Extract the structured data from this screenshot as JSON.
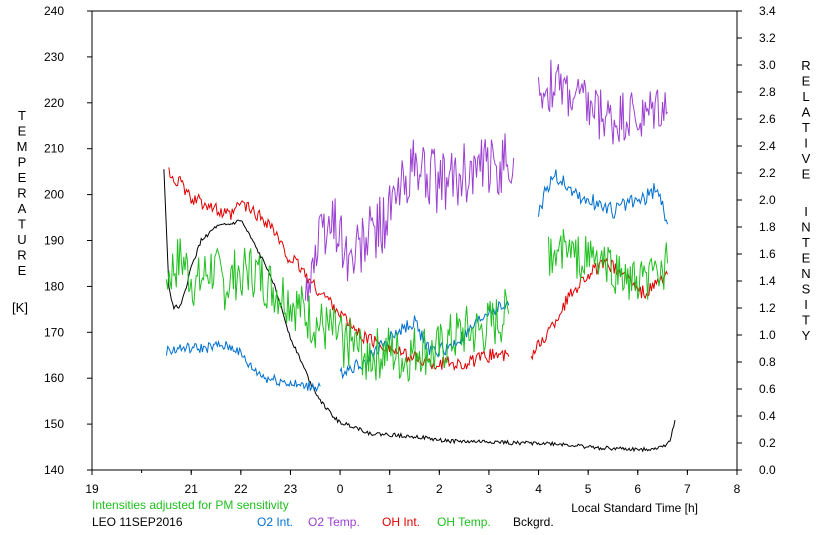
{
  "chart_data": {
    "type": "line",
    "xlabel": "Local Standard Time [h]",
    "x_ticks": [
      "19",
      "21",
      "22",
      "23",
      "0",
      "1",
      "2",
      "3",
      "4",
      "5",
      "6",
      "7",
      "8"
    ],
    "x_range": [
      19,
      32
    ],
    "left_axis": {
      "label_letters": [
        "T",
        "E",
        "M",
        "P",
        "E",
        "R",
        "A",
        "T",
        "U",
        "R",
        "E"
      ],
      "unit": "[K]",
      "range": [
        140,
        240
      ],
      "ticks": [
        140,
        150,
        160,
        170,
        180,
        190,
        200,
        210,
        220,
        230,
        240
      ]
    },
    "right_axis": {
      "label_word1": [
        "R",
        "E",
        "L",
        "A",
        "T",
        "I",
        "V",
        "E"
      ],
      "label_word2": [
        "I",
        "N",
        "T",
        "E",
        "N",
        "S",
        "I",
        "T",
        "Y"
      ],
      "range": [
        0.0,
        3.4
      ],
      "ticks": [
        "0.0",
        "0.2",
        "0.4",
        "0.6",
        "0.8",
        "1.0",
        "1.2",
        "1.4",
        "1.6",
        "1.8",
        "2.0",
        "2.2",
        "2.4",
        "2.6",
        "2.8",
        "3.0",
        "3.2",
        "3.4"
      ]
    },
    "note": "Intensities adjusted for PM sensitivity",
    "station": "LEO 11SEP2016",
    "legend": [
      {
        "key": "o2int",
        "label": "O2 Int.",
        "color": "#0070d0"
      },
      {
        "key": "o2temp",
        "label": "O2 Temp.",
        "color": "#9b40d0"
      },
      {
        "key": "ohint",
        "label": "OH Int.",
        "color": "#e00000"
      },
      {
        "key": "ohtemp",
        "label": "OH Temp.",
        "color": "#20c020"
      },
      {
        "key": "bck",
        "label": "Bckgrd.",
        "color": "#000000"
      }
    ],
    "series": [
      {
        "key": "bck",
        "axis": "right",
        "color": "#000000",
        "x": [
          20.45,
          20.55,
          20.65,
          20.8,
          21.0,
          21.2,
          21.5,
          21.8,
          22.0,
          22.2,
          22.4,
          22.6,
          22.8,
          23.0,
          23.2,
          23.4,
          23.6,
          23.8,
          24.0,
          24.3,
          24.6,
          25.0,
          25.5,
          26.0,
          26.5,
          27.0,
          27.5,
          28.0,
          28.5,
          29.0,
          29.5,
          30.0,
          30.3,
          30.5,
          30.65,
          30.75
        ],
        "y": [
          2.22,
          1.35,
          1.2,
          1.22,
          1.5,
          1.7,
          1.8,
          1.82,
          1.85,
          1.72,
          1.58,
          1.45,
          1.22,
          0.98,
          0.82,
          0.65,
          0.52,
          0.42,
          0.35,
          0.32,
          0.27,
          0.26,
          0.25,
          0.22,
          0.21,
          0.21,
          0.2,
          0.2,
          0.19,
          0.17,
          0.16,
          0.15,
          0.16,
          0.17,
          0.22,
          0.37
        ],
        "noise": 0.015
      },
      {
        "key": "ohint",
        "axis": "right",
        "color": "#e00000",
        "x": [
          20.55,
          20.8,
          21.0,
          21.3,
          21.6,
          21.8,
          22.0,
          22.3,
          22.6,
          22.9,
          23.2,
          23.5,
          23.8,
          24.1,
          24.4,
          24.7,
          25.0,
          25.3,
          25.6,
          25.9,
          26.2,
          26.5,
          26.8,
          27.1,
          27.4
        ],
        "y": [
          2.2,
          2.12,
          2.0,
          1.98,
          1.9,
          1.88,
          1.98,
          1.9,
          1.82,
          1.6,
          1.5,
          1.35,
          1.25,
          1.12,
          1.0,
          0.95,
          0.9,
          0.85,
          0.82,
          0.78,
          0.8,
          0.78,
          0.82,
          0.86,
          0.84
        ],
        "noise": 0.05,
        "seed": 11
      },
      {
        "key": "ohint",
        "axis": "right",
        "color": "#e00000",
        "x": [
          27.85,
          28.0,
          28.3,
          28.6,
          28.9,
          29.2,
          29.4,
          29.6,
          29.8,
          30.0,
          30.2,
          30.5,
          30.6
        ],
        "y": [
          0.85,
          0.92,
          1.08,
          1.28,
          1.42,
          1.5,
          1.52,
          1.48,
          1.42,
          1.32,
          1.32,
          1.42,
          1.45
        ],
        "noise": 0.05,
        "seed": 12
      },
      {
        "key": "o2int",
        "axis": "right",
        "color": "#0070d0",
        "x": [
          20.5,
          20.8,
          21.2,
          21.6,
          21.9,
          22.2,
          22.5,
          22.8,
          23.2,
          23.6
        ],
        "y": [
          0.88,
          0.9,
          0.9,
          0.92,
          0.9,
          0.76,
          0.68,
          0.66,
          0.62,
          0.62
        ],
        "noise": 0.04,
        "seed": 21
      },
      {
        "key": "o2int",
        "axis": "right",
        "color": "#0070d0",
        "x": [
          24.0,
          24.5,
          25.0,
          25.5,
          25.8,
          26.2,
          26.6,
          27.0,
          27.4
        ],
        "y": [
          0.72,
          0.8,
          0.98,
          1.1,
          0.88,
          0.9,
          1.02,
          1.18,
          1.22
        ],
        "noise": 0.05,
        "seed": 22
      },
      {
        "key": "o2int",
        "axis": "right",
        "color": "#0070d0",
        "x": [
          28.0,
          28.3,
          28.6,
          28.9,
          29.2,
          29.5,
          29.8,
          30.1,
          30.4,
          30.6
        ],
        "y": [
          1.92,
          2.2,
          2.1,
          2.0,
          1.98,
          1.92,
          1.98,
          2.0,
          2.1,
          1.82
        ],
        "noise": 0.06,
        "seed": 23
      },
      {
        "key": "o2temp",
        "axis": "left",
        "color": "#9b40d0",
        "x": [
          23.3,
          23.6,
          23.9,
          24.2,
          24.5,
          24.8,
          25.1,
          25.4,
          25.7,
          26.0,
          26.3,
          26.6,
          26.9,
          27.2,
          27.5
        ],
        "y": [
          180,
          190,
          195,
          185,
          190,
          193,
          198,
          205,
          205,
          202,
          203,
          205,
          205,
          207,
          208
        ],
        "noise": 7,
        "seed": 31
      },
      {
        "key": "o2temp",
        "axis": "left",
        "color": "#9b40d0",
        "x": [
          28.0,
          28.3,
          28.6,
          28.9,
          29.2,
          29.5,
          29.8,
          30.1,
          30.4,
          30.6
        ],
        "y": [
          222,
          224,
          222,
          220,
          218,
          216,
          218,
          216,
          220,
          218
        ],
        "noise": 6,
        "seed": 32
      },
      {
        "key": "ohtemp",
        "axis": "left",
        "color": "#20c020",
        "x": [
          20.5,
          20.8,
          21.1,
          21.4,
          21.7,
          22.0,
          22.3,
          22.6,
          22.9,
          23.2,
          23.5,
          23.8,
          24.1,
          24.4,
          24.7,
          25.0,
          25.3,
          25.6,
          25.9,
          26.2,
          26.5,
          26.8,
          27.1,
          27.4
        ],
        "y": [
          182,
          186,
          180,
          184,
          180,
          184,
          183,
          180,
          178,
          175,
          172,
          170,
          168,
          166,
          165,
          166,
          164,
          167,
          165,
          168,
          170,
          170,
          172,
          174
        ],
        "noise": 6,
        "seed": 41
      },
      {
        "key": "ohtemp",
        "axis": "left",
        "color": "#20c020",
        "x": [
          28.2,
          28.5,
          28.8,
          29.1,
          29.4,
          29.7,
          30.0,
          30.3,
          30.6
        ],
        "y": [
          186,
          188,
          186,
          186,
          184,
          182,
          180,
          182,
          185
        ],
        "noise": 5,
        "seed": 42
      }
    ]
  }
}
